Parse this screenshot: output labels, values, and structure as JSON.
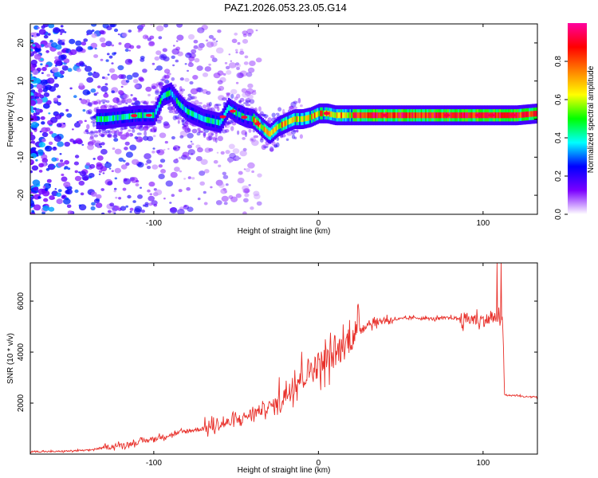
{
  "title": "PAZ1.2026.053.23.05.G14",
  "chart_data": [
    {
      "type": "heatmap",
      "xlabel": "Height of straight line (km)",
      "ylabel": "Frequency (Hz)",
      "xlim": [
        -175,
        133
      ],
      "ylim": [
        -25,
        25
      ],
      "xticks": [
        -100,
        0,
        100
      ],
      "xtick_labels": [
        "-100",
        "0",
        "100"
      ],
      "yticks": [
        -20,
        -10,
        0,
        10,
        20
      ],
      "ytick_labels": [
        "-20",
        "-10",
        "0",
        "10",
        "20"
      ],
      "ridge": {
        "description": "frequency of peak spectral amplitude vs height",
        "x": [
          -130,
          -120,
          -110,
          -100,
          -95,
          -90,
          -85,
          -80,
          -70,
          -60,
          -55,
          -50,
          -45,
          -40,
          -35,
          -30,
          -25,
          -20,
          -15,
          -10,
          -5,
          0,
          5,
          10,
          20,
          30,
          40,
          60,
          80,
          100,
          110,
          120,
          133
        ],
        "y": [
          0,
          0.5,
          1,
          1,
          6,
          7,
          4,
          2,
          0,
          -1,
          3,
          1.5,
          0.5,
          0,
          -2,
          -4,
          -2,
          -1,
          0,
          0,
          0.5,
          1.5,
          1.5,
          1,
          1,
          1,
          1,
          1,
          1,
          1,
          1,
          1,
          1.5
        ]
      },
      "colorbar": {
        "label": "Normalized spectral amplitude",
        "range": [
          0,
          1
        ],
        "ticks": [
          0.0,
          0.2,
          0.4,
          0.6,
          0.8
        ],
        "tick_labels": [
          "0.0",
          "0.2",
          "0.4",
          "0.6",
          "0.8"
        ],
        "colors": [
          "#ffffff",
          "#7b00ff",
          "#0000ff",
          "#00ffff",
          "#00ff00",
          "#ffff00",
          "#ff8000",
          "#ff0000",
          "#ff00a0"
        ]
      }
    },
    {
      "type": "line",
      "xlabel": "Height of straight line (km)",
      "ylabel": "SNR (10 * v/v)",
      "xlim": [
        -175,
        133
      ],
      "ylim": [
        0,
        7500
      ],
      "xticks": [
        -100,
        0,
        100
      ],
      "xtick_labels": [
        "-100",
        "0",
        "100"
      ],
      "yticks": [
        2000,
        4000,
        6000
      ],
      "ytick_labels": [
        "2000",
        "4000",
        "6000"
      ],
      "color": "#e8302a",
      "series": [
        {
          "name": "SNR",
          "x": [
            -175,
            -160,
            -140,
            -130,
            -120,
            -110,
            -100,
            -90,
            -80,
            -70,
            -60,
            -50,
            -40,
            -30,
            -25,
            -20,
            -15,
            -10,
            -5,
            0,
            5,
            10,
            15,
            20,
            25,
            30,
            40,
            50,
            60,
            70,
            80,
            90,
            100,
            105,
            108,
            110,
            112,
            113,
            115,
            120,
            125,
            133
          ],
          "y": [
            100,
            100,
            150,
            250,
            350,
            450,
            600,
            750,
            900,
            1000,
            1150,
            1300,
            1600,
            1850,
            2000,
            2400,
            2800,
            3100,
            3300,
            3500,
            3700,
            3900,
            4200,
            4600,
            4900,
            5100,
            5250,
            5300,
            5350,
            5300,
            5350,
            5300,
            5250,
            5300,
            5350,
            5250,
            5200,
            2350,
            2300,
            2300,
            2250,
            2250
          ]
        }
      ]
    }
  ]
}
